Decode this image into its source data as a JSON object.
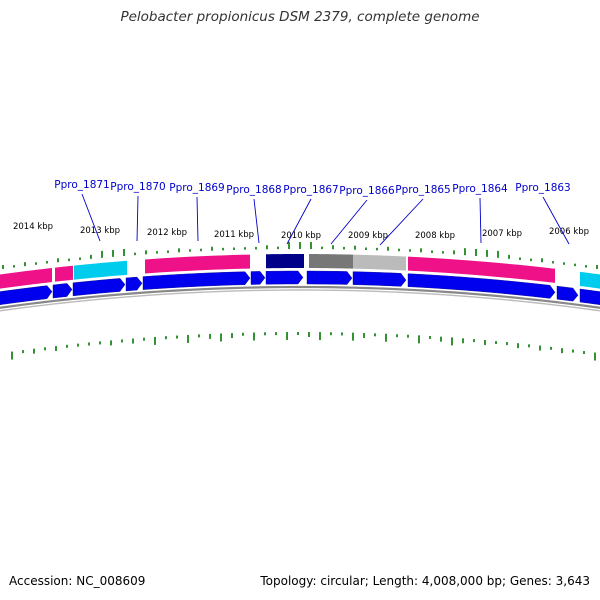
{
  "header": {
    "title": "Pelobacter propionicus DSM 2379, complete genome"
  },
  "footer": {
    "accession": "Accession: NC_008609",
    "stats": "Topology: circular; Length: 4,008,000 bp; Genes: 3,643"
  },
  "colors": {
    "cds_forward": "#0000ee",
    "cog_magenta": "#ee1188",
    "cog_cyan": "#00ccee",
    "cog_navy": "#000088",
    "cog_grey": "#777777",
    "cog_lightgrey": "#bbbbbb",
    "tick_green": "#007700",
    "backbone": "#888888",
    "label_blue": "#0000cc"
  },
  "kbp_labels": [
    "2014 kbp",
    "2013 kbp",
    "2012 kbp",
    "2011 kbp",
    "2010 kbp",
    "2009 kbp",
    "2008 kbp",
    "2007 kbp",
    "2006 kbp"
  ],
  "gene_labels": [
    "Ppro_1871",
    "Ppro_1870",
    "Ppro_1869",
    "Ppro_1868",
    "Ppro_1867",
    "Ppro_1866",
    "Ppro_1865",
    "Ppro_1864",
    "Ppro_1863"
  ],
  "cog_segments": [
    {
      "name": "cog-block-left",
      "color": "#ee1188"
    },
    {
      "name": "cog-block-1871a",
      "color": "#ee1188"
    },
    {
      "name": "cog-block-1871b",
      "color": "#00ccee"
    },
    {
      "name": "cog-block-1869",
      "color": "#ee1188"
    },
    {
      "name": "cog-block-1867",
      "color": "#000088"
    },
    {
      "name": "cog-block-1866a",
      "color": "#777777"
    },
    {
      "name": "cog-block-1866b",
      "color": "#bbbbbb"
    },
    {
      "name": "cog-block-1864",
      "color": "#ee1188"
    },
    {
      "name": "cog-block-right",
      "color": "#00ccee"
    }
  ]
}
